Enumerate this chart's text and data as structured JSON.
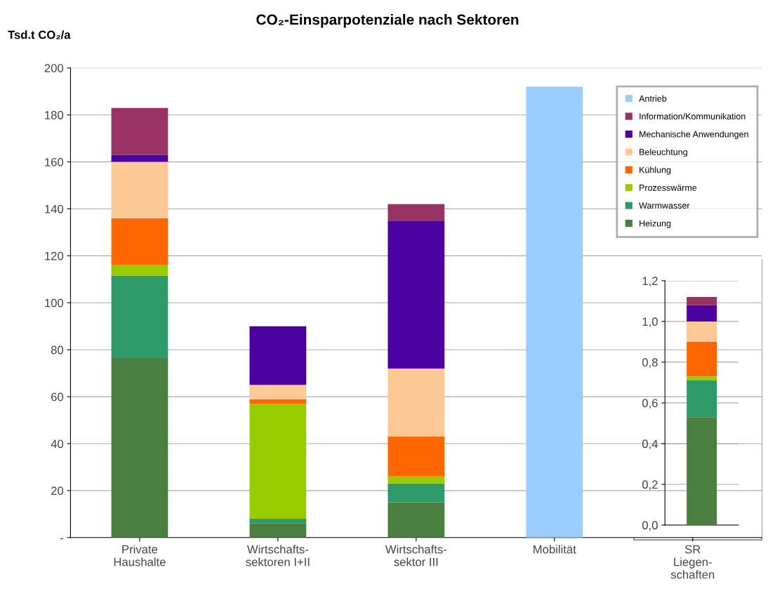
{
  "chart_data": [
    {
      "type": "bar",
      "title": "CO₂-Einsparpotenziale nach Sektoren",
      "ylabel": "Tsd.t CO₂/a",
      "stacked": true,
      "grid": "y",
      "legend": "top right",
      "categories": [
        "Private\nHaushalte",
        "Wirtschafts-\nsektoren I+II",
        "Wirtschafts-\nsektor III",
        "Mobilität",
        "SR\nLiegen-\nschaften"
      ],
      "ylim": [
        0,
        200
      ],
      "yticks": [
        {
          "value": 0,
          "label": "-"
        },
        20,
        40,
        60,
        80,
        100,
        120,
        140,
        160,
        180,
        200
      ],
      "series": [
        {
          "name": "Heizung",
          "color": "#4a7f3f",
          "values": [
            76.5,
            6,
            15,
            null,
            null
          ]
        },
        {
          "name": "Warmwasser",
          "color": "#2e9a6a",
          "values": [
            35,
            2,
            8,
            null,
            null
          ]
        },
        {
          "name": "Prozesswärme",
          "color": "#99cc00",
          "values": [
            4.5,
            49,
            3,
            null,
            null
          ]
        },
        {
          "name": "Kühlung",
          "color": "#ff6600",
          "values": [
            20,
            2,
            17,
            null,
            null
          ]
        },
        {
          "name": "Beleuchtung",
          "color": "#fcc896",
          "values": [
            24,
            6,
            29,
            null,
            null
          ]
        },
        {
          "name": "Mechanische Anwendungen",
          "color": "#4b00a0",
          "values": [
            3,
            25,
            63,
            null,
            null
          ]
        },
        {
          "name": "Information/Kommunikation",
          "color": "#993366",
          "values": [
            20,
            0,
            7,
            null,
            null
          ]
        },
        {
          "name": "Antrieb",
          "color": "#99ccff",
          "values": [
            null,
            null,
            null,
            192,
            null
          ]
        }
      ]
    },
    {
      "type": "bar",
      "stacked": true,
      "grid": "y",
      "tick_labels": "y",
      "categories": [
        null
      ],
      "ylim": [
        0,
        1.2
      ],
      "yticks": [
        {
          "value": 0,
          "label": "0,0"
        },
        {
          "value": 0.2,
          "label": "0,2"
        },
        {
          "value": 0.4,
          "label": "0,4"
        },
        {
          "value": 0.6,
          "label": "0,6"
        },
        {
          "value": 0.8,
          "label": "0,8"
        },
        {
          "value": 1.0,
          "label": "1,0"
        },
        {
          "value": 1.2,
          "label": "1,2"
        }
      ],
      "series": [
        {
          "color": "#4a7f3f",
          "values": [
            0.53
          ]
        },
        {
          "color": "#2e9a6a",
          "values": [
            0.18
          ]
        },
        {
          "color": "#99cc00",
          "values": [
            0.02
          ]
        },
        {
          "color": "#ff6600",
          "values": [
            0.17
          ]
        },
        {
          "color": "#fcc896",
          "values": [
            0.1
          ]
        },
        {
          "color": "#4b00a0",
          "values": [
            0.08
          ]
        },
        {
          "color": "#993366",
          "values": [
            0.04
          ]
        }
      ]
    }
  ]
}
